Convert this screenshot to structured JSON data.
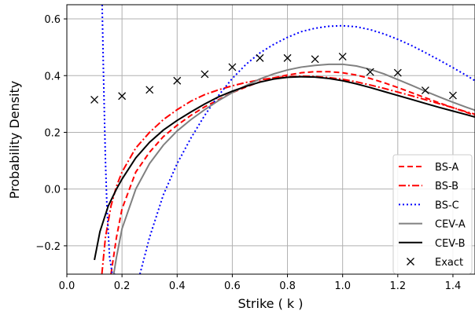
{
  "chart_data": {
    "type": "line",
    "xlabel": "Strike ( k )",
    "ylabel": "Probability Density",
    "xlim": [
      0.0,
      1.48
    ],
    "ylim": [
      -0.3,
      0.65
    ],
    "xticks": [
      0.0,
      0.2,
      0.4,
      0.6,
      0.8,
      1.0,
      1.2,
      1.4
    ],
    "xtick_labels": [
      "0.0",
      "0.2",
      "0.4",
      "0.6",
      "0.8",
      "1.0",
      "1.2",
      "1.4"
    ],
    "yticks": [
      -0.2,
      0.0,
      0.2,
      0.4,
      0.6
    ],
    "ytick_labels": [
      "−0.2",
      "0.0",
      "0.2",
      "0.4",
      "0.6"
    ],
    "grid": true,
    "legend_position": "bottom-right",
    "series": [
      {
        "name": "BS-A",
        "color": "#ff0000",
        "style": "dashed",
        "x": [
          0.16,
          0.18,
          0.2,
          0.25,
          0.3,
          0.35,
          0.4,
          0.45,
          0.5,
          0.55,
          0.6,
          0.65,
          0.7,
          0.75,
          0.8,
          0.85,
          0.9,
          0.95,
          1.0,
          1.05,
          1.1,
          1.15,
          1.2,
          1.25,
          1.3,
          1.35,
          1.4,
          1.45,
          1.48
        ],
        "y": [
          -0.3,
          -0.17,
          -0.07,
          0.06,
          0.13,
          0.185,
          0.225,
          0.26,
          0.29,
          0.315,
          0.34,
          0.36,
          0.378,
          0.392,
          0.402,
          0.41,
          0.414,
          0.414,
          0.41,
          0.402,
          0.39,
          0.375,
          0.358,
          0.34,
          0.322,
          0.304,
          0.287,
          0.27,
          0.26
        ]
      },
      {
        "name": "BS-B",
        "color": "#ff0000",
        "style": "dashdot",
        "x": [
          0.127,
          0.14,
          0.16,
          0.18,
          0.2,
          0.25,
          0.3,
          0.35,
          0.4,
          0.45,
          0.5,
          0.55,
          0.6,
          0.65,
          0.7,
          0.75,
          0.8,
          0.85,
          0.9,
          0.95,
          1.0,
          1.05,
          1.1,
          1.15,
          1.2,
          1.25,
          1.3,
          1.35,
          1.4,
          1.45,
          1.48
        ],
        "y": [
          -0.3,
          -0.17,
          -0.06,
          0.01,
          0.06,
          0.145,
          0.2,
          0.245,
          0.28,
          0.31,
          0.333,
          0.35,
          0.364,
          0.376,
          0.385,
          0.392,
          0.396,
          0.398,
          0.397,
          0.393,
          0.387,
          0.378,
          0.367,
          0.355,
          0.342,
          0.329,
          0.315,
          0.301,
          0.287,
          0.272,
          0.264
        ]
      },
      {
        "name": "BS-C",
        "color": "#0000ff",
        "style": "dotted",
        "x": [
          0.128,
          0.133,
          0.14,
          0.145,
          0.15,
          0.155,
          0.165,
          0.175,
          0.183
        ],
        "y": [
          0.65,
          0.4,
          0.1,
          -0.05,
          -0.15,
          -0.24,
          -0.3,
          -0.3,
          -0.3
        ],
        "x2": [
          0.265,
          0.3,
          0.35,
          0.4,
          0.45,
          0.5,
          0.55,
          0.6,
          0.65,
          0.7,
          0.75,
          0.8,
          0.85,
          0.9,
          0.95,
          1.0,
          1.05,
          1.1,
          1.15,
          1.2,
          1.25,
          1.3,
          1.35,
          1.4,
          1.45,
          1.48
        ],
        "y2": [
          -0.3,
          -0.17,
          -0.02,
          0.09,
          0.18,
          0.26,
          0.33,
          0.39,
          0.44,
          0.48,
          0.51,
          0.535,
          0.555,
          0.567,
          0.574,
          0.576,
          0.572,
          0.562,
          0.547,
          0.528,
          0.506,
          0.481,
          0.455,
          0.428,
          0.4,
          0.382
        ]
      },
      {
        "name": "CEV-A",
        "color": "#808080",
        "style": "solid",
        "x": [
          0.17,
          0.18,
          0.2,
          0.25,
          0.3,
          0.35,
          0.4,
          0.45,
          0.5,
          0.55,
          0.6,
          0.65,
          0.7,
          0.75,
          0.8,
          0.85,
          0.9,
          0.95,
          1.0,
          1.05,
          1.1,
          1.15,
          1.2,
          1.25,
          1.3,
          1.35,
          1.4,
          1.45,
          1.48
        ],
        "y": [
          -0.3,
          -0.24,
          -0.14,
          0.0,
          0.09,
          0.155,
          0.205,
          0.245,
          0.28,
          0.312,
          0.34,
          0.365,
          0.388,
          0.406,
          0.42,
          0.43,
          0.436,
          0.44,
          0.44,
          0.434,
          0.422,
          0.406,
          0.386,
          0.366,
          0.345,
          0.325,
          0.306,
          0.288,
          0.278
        ]
      },
      {
        "name": "CEV-B",
        "color": "#000000",
        "style": "solid",
        "x": [
          0.1,
          0.12,
          0.15,
          0.18,
          0.2,
          0.25,
          0.3,
          0.35,
          0.4,
          0.45,
          0.5,
          0.55,
          0.6,
          0.65,
          0.7,
          0.75,
          0.8,
          0.85,
          0.9,
          0.95,
          1.0,
          1.05,
          1.1,
          1.15,
          1.2,
          1.25,
          1.3,
          1.35,
          1.4,
          1.45,
          1.48
        ],
        "y": [
          -0.25,
          -0.15,
          -0.06,
          0.0,
          0.035,
          0.11,
          0.165,
          0.208,
          0.242,
          0.272,
          0.3,
          0.325,
          0.345,
          0.362,
          0.377,
          0.388,
          0.394,
          0.396,
          0.395,
          0.39,
          0.382,
          0.371,
          0.358,
          0.344,
          0.33,
          0.316,
          0.302,
          0.288,
          0.275,
          0.262,
          0.254
        ]
      },
      {
        "name": "Exact",
        "color": "#000000",
        "style": "marker-x",
        "x": [
          0.1,
          0.2,
          0.3,
          0.4,
          0.5,
          0.6,
          0.7,
          0.8,
          0.9,
          1.0,
          1.1,
          1.2,
          1.3,
          1.4
        ],
        "y": [
          0.315,
          0.328,
          0.35,
          0.382,
          0.405,
          0.43,
          0.462,
          0.462,
          0.458,
          0.467,
          0.413,
          0.41,
          0.348,
          0.33
        ]
      }
    ]
  }
}
